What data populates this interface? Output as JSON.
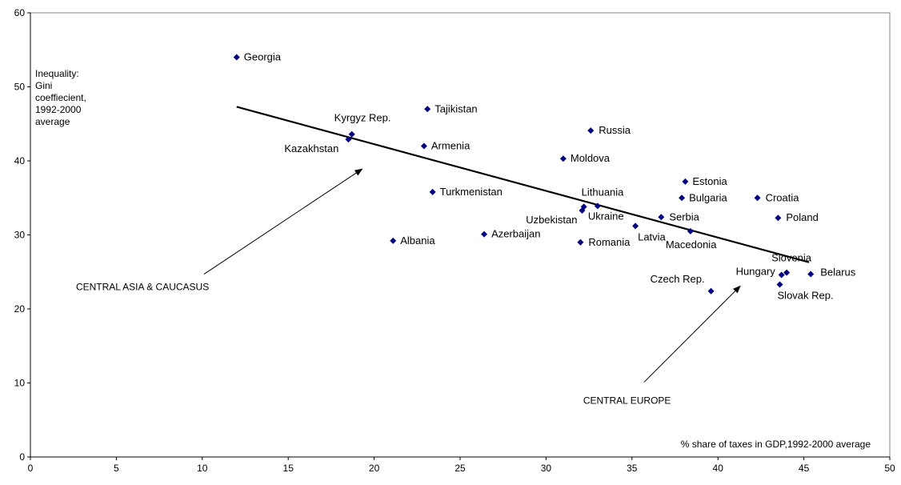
{
  "chart_data": {
    "type": "scatter",
    "title": "",
    "xlabel": "% share of taxes in GDP,1992-2000 average",
    "ylabel_lines": [
      "Inequality:",
      "Gini",
      "coeffiecient,",
      "1992-2000",
      "average"
    ],
    "xlim": [
      0,
      50
    ],
    "ylim": [
      0,
      60
    ],
    "x_ticks": [
      0,
      5,
      10,
      15,
      20,
      25,
      30,
      35,
      40,
      45,
      50
    ],
    "y_ticks": [
      0,
      10,
      20,
      30,
      40,
      50,
      60
    ],
    "grid": false,
    "legend": "none",
    "colors": {
      "marker": "#000080",
      "line": "#000000"
    },
    "points": [
      {
        "label": "Georgia",
        "x": 12.0,
        "y": 54.0
      },
      {
        "label": "Kyrgyz Rep.",
        "x": 18.7,
        "y": 43.6
      },
      {
        "label": "Kazakhstan",
        "x": 18.5,
        "y": 42.9
      },
      {
        "label": "Tajikistan",
        "x": 23.1,
        "y": 47.0
      },
      {
        "label": "Armenia",
        "x": 22.9,
        "y": 42.0
      },
      {
        "label": "Turkmenistan",
        "x": 23.4,
        "y": 35.8
      },
      {
        "label": "Albania",
        "x": 21.1,
        "y": 29.2
      },
      {
        "label": "Azerbaijan",
        "x": 26.4,
        "y": 30.1
      },
      {
        "label": "Russia",
        "x": 32.6,
        "y": 44.1
      },
      {
        "label": "Moldova",
        "x": 31.0,
        "y": 40.3
      },
      {
        "label": "Lithuania",
        "x": 32.2,
        "y": 33.8
      },
      {
        "label": "Uzbekistan",
        "x": 32.1,
        "y": 33.3
      },
      {
        "label": "Ukraine",
        "x": 33.0,
        "y": 33.9
      },
      {
        "label": "Romania",
        "x": 32.0,
        "y": 29.0
      },
      {
        "label": "Latvia",
        "x": 35.2,
        "y": 31.2
      },
      {
        "label": "Serbia",
        "x": 36.7,
        "y": 32.4
      },
      {
        "label": "Macedonia",
        "x": 38.4,
        "y": 30.5
      },
      {
        "label": "Estonia",
        "x": 38.1,
        "y": 37.2
      },
      {
        "label": "Bulgaria",
        "x": 37.9,
        "y": 35.0
      },
      {
        "label": "Croatia",
        "x": 42.3,
        "y": 35.0
      },
      {
        "label": "Poland",
        "x": 43.5,
        "y": 32.3
      },
      {
        "label": "Slovenia",
        "x": 44.0,
        "y": 24.9
      },
      {
        "label": "Hungary",
        "x": 43.7,
        "y": 24.6
      },
      {
        "label": "Belarus",
        "x": 45.4,
        "y": 24.7
      },
      {
        "label": "Slovak Rep.",
        "x": 43.6,
        "y": 23.3
      },
      {
        "label": "Czech Rep.",
        "x": 39.6,
        "y": 22.4
      }
    ],
    "trendline": {
      "x": [
        12.0,
        45.3
      ],
      "y": [
        47.3,
        26.3
      ]
    },
    "annotations": [
      {
        "text": "CENTRAL ASIA & CAUCASUS",
        "arrow_from": [
          10.1,
          24.7
        ],
        "arrow_to": [
          19.3,
          38.9
        ]
      },
      {
        "text": "CENTRAL EUROPE",
        "arrow_from": [
          35.7,
          10.1
        ],
        "arrow_to": [
          41.3,
          23.1
        ]
      }
    ]
  }
}
